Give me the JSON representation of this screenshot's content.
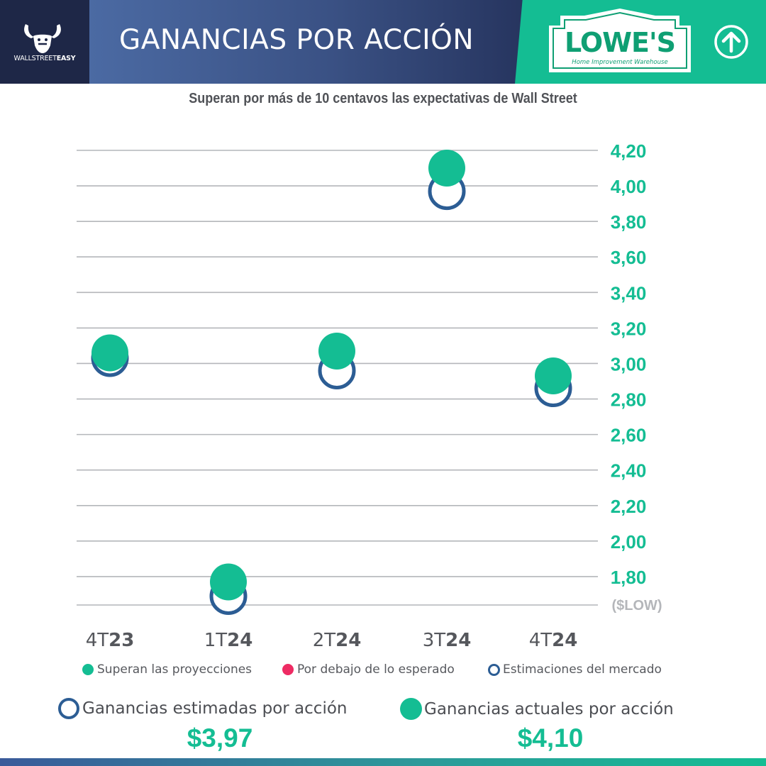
{
  "header": {
    "brand_left": {
      "name_regular": "WALLSTREET",
      "name_bold": "EASY"
    },
    "title": "GANANCIAS POR ACCIÓN",
    "company_logo": {
      "name": "LOWE'S",
      "tagline": "Home Improvement Warehouse"
    },
    "trend_icon": "arrow-up-circle-icon",
    "colors": {
      "navy": "#1e2747",
      "blue": "#3a5184",
      "green": "#14bd93"
    }
  },
  "subtitle": "Superan por más de 10 centavos las expectativas de Wall Street",
  "chart_data": {
    "type": "scatter",
    "categories": [
      {
        "prefix": "4T",
        "year": "23"
      },
      {
        "prefix": "1T",
        "year": "24"
      },
      {
        "prefix": "2T",
        "year": "24"
      },
      {
        "prefix": "3T",
        "year": "24"
      },
      {
        "prefix": "4T",
        "year": "24"
      }
    ],
    "series": [
      {
        "name": "Estimaciones del mercado",
        "marker": "ring",
        "color": "#2c5d94",
        "values": [
          3.03,
          1.69,
          2.96,
          3.97,
          2.86
        ]
      },
      {
        "name": "Superan las proyecciones",
        "marker": "dot",
        "color": "#14bd93",
        "values": [
          3.06,
          1.77,
          3.07,
          4.1,
          2.93
        ]
      }
    ],
    "ylim": [
      1.64,
      4.2
    ],
    "yticks": [
      "4,20",
      "4,00",
      "3,80",
      "3,60",
      "3,40",
      "3,20",
      "3,00",
      "2,80",
      "2,60",
      "2,40",
      "2,20",
      "2,00",
      "1,80"
    ],
    "ylabel": "($LOW)",
    "y_axis_side": "right",
    "grid": true
  },
  "legend": [
    {
      "label": "Superan las proyecciones",
      "color": "#14bd93",
      "marker": "dot"
    },
    {
      "label": "Por debajo de lo esperado",
      "color": "#ee2b63",
      "marker": "dot"
    },
    {
      "label": "Estimaciones del mercado",
      "color": "#2c5d94",
      "marker": "ring"
    }
  ],
  "summary": {
    "estimated": {
      "label": "Ganancias estimadas por acción",
      "value": "$3,97"
    },
    "actual": {
      "label": "Ganancias actuales por acción",
      "value": "$4,10"
    }
  }
}
